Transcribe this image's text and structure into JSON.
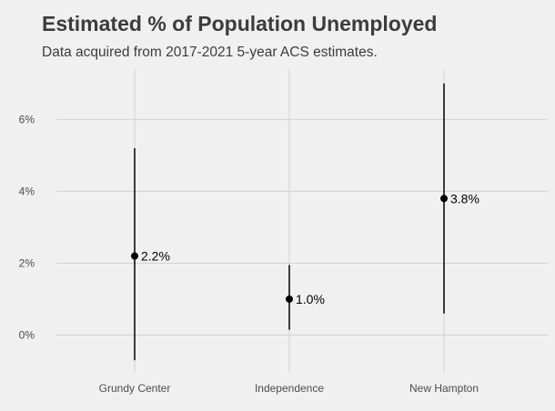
{
  "chart_data": {
    "type": "errorbar",
    "title": "Estimated % of Population Unemployed",
    "subtitle": "Data acquired from 2017-2021 5-year ACS estimates.",
    "xlabel": "",
    "ylabel": "",
    "categories": [
      "Grundy Center",
      "Independence",
      "New Hampton"
    ],
    "values": [
      2.2,
      1.0,
      3.8
    ],
    "lower": [
      -0.7,
      0.15,
      0.6
    ],
    "upper": [
      5.2,
      1.95,
      7.0
    ],
    "point_labels": [
      "2.2%",
      "1.0%",
      "3.8%"
    ],
    "yticks": [
      0,
      2,
      4,
      6
    ],
    "ytick_labels": [
      "0%",
      "2%",
      "4%",
      "6%"
    ],
    "ylim": [
      -1.05,
      7.4
    ],
    "grid": true,
    "legend": "none",
    "colors": {
      "background": "#f0f0f0",
      "grid": "#d2d2d2",
      "mark": "#000000",
      "text": "#3c3c3c"
    }
  }
}
